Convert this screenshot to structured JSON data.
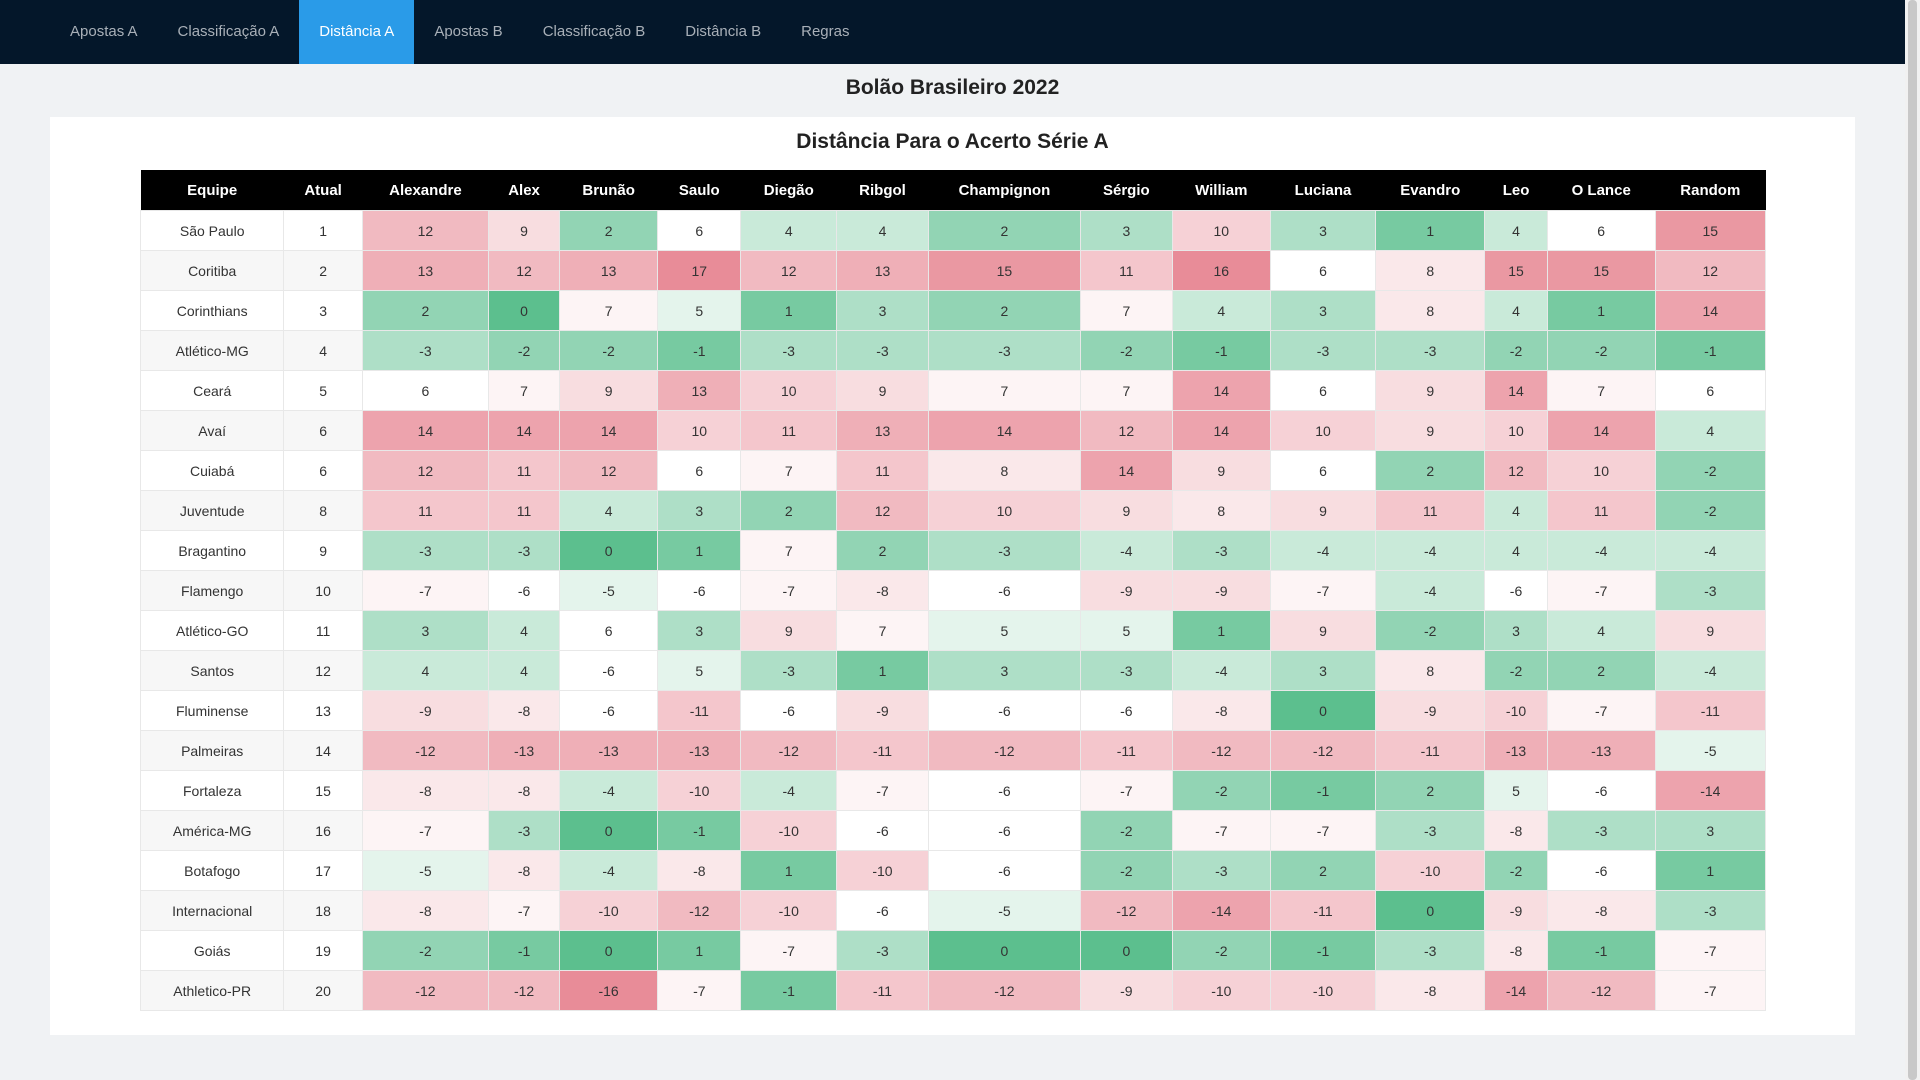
{
  "nav": {
    "items": [
      {
        "label": "Apostas A",
        "active": false
      },
      {
        "label": "Classificação A",
        "active": false
      },
      {
        "label": "Distância A",
        "active": true
      },
      {
        "label": "Apostas B",
        "active": false
      },
      {
        "label": "Classificação B",
        "active": false
      },
      {
        "label": "Distância B",
        "active": false
      },
      {
        "label": "Regras",
        "active": false
      }
    ],
    "background": "#04172a",
    "active_color": "#2a9be8"
  },
  "page_title": "Bolão Brasileiro 2022",
  "table_title": "Distância Para o Acerto Série A",
  "columns": [
    "Equipe",
    "Atual",
    "Alexandre",
    "Alex",
    "Brunão",
    "Saulo",
    "Diegão",
    "Ribgol",
    "Champignon",
    "Sérgio",
    "William",
    "Luciana",
    "Evandro",
    "Leo",
    "O Lance",
    "Random"
  ],
  "rows": [
    {
      "team": "São Paulo",
      "pos": 1,
      "values": [
        12,
        9,
        2,
        6,
        4,
        4,
        2,
        3,
        10,
        3,
        1,
        4,
        6,
        15
      ]
    },
    {
      "team": "Coritiba",
      "pos": 2,
      "values": [
        13,
        12,
        13,
        17,
        12,
        13,
        15,
        11,
        16,
        6,
        8,
        15,
        15,
        12
      ]
    },
    {
      "team": "Corinthians",
      "pos": 3,
      "values": [
        2,
        0,
        7,
        5,
        1,
        3,
        2,
        7,
        4,
        3,
        8,
        4,
        1,
        14
      ]
    },
    {
      "team": "Atlético-MG",
      "pos": 4,
      "values": [
        -3,
        -2,
        -2,
        -1,
        -3,
        -3,
        -3,
        -2,
        -1,
        -3,
        -3,
        -2,
        -2,
        -1
      ]
    },
    {
      "team": "Ceará",
      "pos": 5,
      "values": [
        6,
        7,
        9,
        13,
        10,
        9,
        7,
        7,
        14,
        6,
        9,
        14,
        7,
        6
      ]
    },
    {
      "team": "Avaí",
      "pos": 6,
      "values": [
        14,
        14,
        14,
        10,
        11,
        13,
        14,
        12,
        14,
        10,
        9,
        10,
        14,
        4
      ]
    },
    {
      "team": "Cuiabá",
      "pos": 6,
      "values": [
        12,
        11,
        12,
        6,
        7,
        11,
        8,
        14,
        9,
        6,
        2,
        12,
        10,
        -2
      ]
    },
    {
      "team": "Juventude",
      "pos": 8,
      "values": [
        11,
        11,
        4,
        3,
        2,
        12,
        10,
        9,
        8,
        9,
        11,
        4,
        11,
        -2
      ]
    },
    {
      "team": "Bragantino",
      "pos": 9,
      "values": [
        -3,
        -3,
        0,
        1,
        7,
        2,
        -3,
        -4,
        -3,
        -4,
        -4,
        4,
        -4,
        -4
      ]
    },
    {
      "team": "Flamengo",
      "pos": 10,
      "values": [
        -7,
        -6,
        -5,
        -6,
        -7,
        -8,
        -6,
        -9,
        -9,
        -7,
        -4,
        -6,
        -7,
        -3
      ]
    },
    {
      "team": "Atlético-GO",
      "pos": 11,
      "values": [
        3,
        4,
        6,
        3,
        9,
        7,
        5,
        5,
        1,
        9,
        -2,
        3,
        4,
        9
      ]
    },
    {
      "team": "Santos",
      "pos": 12,
      "values": [
        4,
        4,
        -6,
        5,
        -3,
        1,
        3,
        -3,
        -4,
        3,
        8,
        -2,
        2,
        -4
      ]
    },
    {
      "team": "Fluminense",
      "pos": 13,
      "values": [
        -9,
        -8,
        -6,
        -11,
        -6,
        -9,
        -6,
        -6,
        -8,
        0,
        -9,
        -10,
        -7,
        -11
      ]
    },
    {
      "team": "Palmeiras",
      "pos": 14,
      "values": [
        -12,
        -13,
        -13,
        -13,
        -12,
        -11,
        -12,
        -11,
        -12,
        -12,
        -11,
        -13,
        -13,
        -5
      ]
    },
    {
      "team": "Fortaleza",
      "pos": 15,
      "values": [
        -8,
        -8,
        -4,
        -10,
        -4,
        -7,
        -6,
        -7,
        -2,
        -1,
        2,
        5,
        -6,
        -14
      ]
    },
    {
      "team": "América-MG",
      "pos": 16,
      "values": [
        -7,
        -3,
        0,
        -1,
        -10,
        -6,
        -6,
        -2,
        -7,
        -7,
        -3,
        -8,
        -3,
        3
      ]
    },
    {
      "team": "Botafogo",
      "pos": 17,
      "values": [
        -5,
        -8,
        -4,
        -8,
        1,
        -10,
        -6,
        -2,
        -3,
        2,
        -10,
        -2,
        -6,
        1
      ]
    },
    {
      "team": "Internacional",
      "pos": 18,
      "values": [
        -8,
        -7,
        -10,
        -12,
        -10,
        -6,
        -5,
        -12,
        -14,
        -11,
        0,
        -9,
        -8,
        -3
      ]
    },
    {
      "team": "Goiás",
      "pos": 19,
      "values": [
        -2,
        -1,
        0,
        1,
        -7,
        -3,
        0,
        0,
        -2,
        -1,
        -3,
        -8,
        -1,
        -7
      ]
    },
    {
      "team": "Athletico-PR",
      "pos": 20,
      "values": [
        -12,
        -12,
        -16,
        -7,
        -1,
        -11,
        -12,
        -9,
        -10,
        -10,
        -8,
        -14,
        -12,
        -7
      ]
    }
  ],
  "colors": {
    "good": "#5cbf8e",
    "bad": "#e88c98",
    "neutral": "#ffffff"
  }
}
